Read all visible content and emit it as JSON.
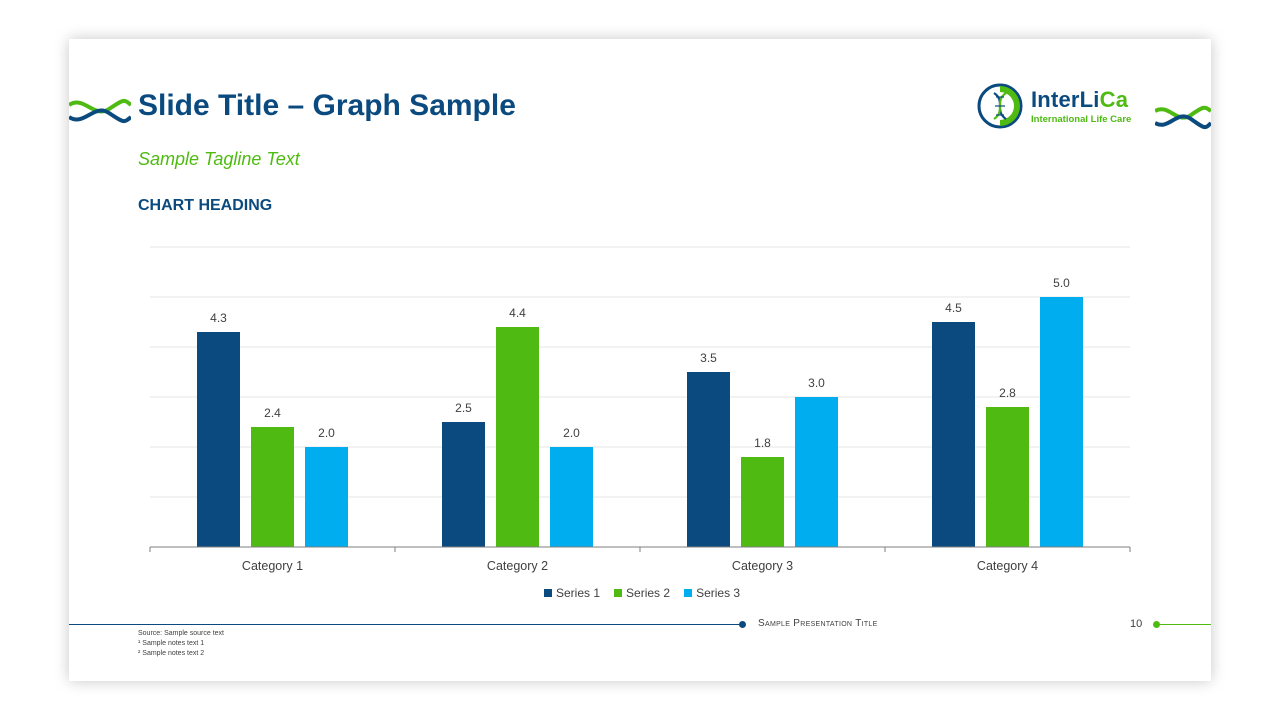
{
  "slide": {
    "title": "Slide Title – Graph Sample",
    "tagline": "Sample Tagline Text",
    "chart_heading": "CHART HEADING"
  },
  "logo": {
    "name_part1": "InterLi",
    "name_part2": "Ca",
    "subtitle": "International Life Care"
  },
  "footer": {
    "presentation_title": "Sample Presentation Title",
    "page_number": "10",
    "source": "Source: Sample source text",
    "note1": "¹ Sample notes text 1",
    "note2": "² Sample notes text 2"
  },
  "colors": {
    "navy": "#0b4a7e",
    "green": "#4fbb12",
    "cyan": "#00aeef"
  },
  "chart_data": {
    "type": "bar",
    "title": "CHART HEADING",
    "categories": [
      "Category 1",
      "Category 2",
      "Category 3",
      "Category 4"
    ],
    "series": [
      {
        "name": "Series 1",
        "color": "#0b4a7e",
        "values": [
          4.3,
          2.5,
          3.5,
          4.5
        ]
      },
      {
        "name": "Series 2",
        "color": "#4fbb12",
        "values": [
          2.4,
          4.4,
          1.8,
          2.8
        ]
      },
      {
        "name": "Series 3",
        "color": "#00aeef",
        "values": [
          2.0,
          2.0,
          3.0,
          5.0
        ]
      }
    ],
    "ylim": [
      0,
      6
    ],
    "grid": true,
    "legend": "bottom",
    "xlabel": "",
    "ylabel": ""
  }
}
